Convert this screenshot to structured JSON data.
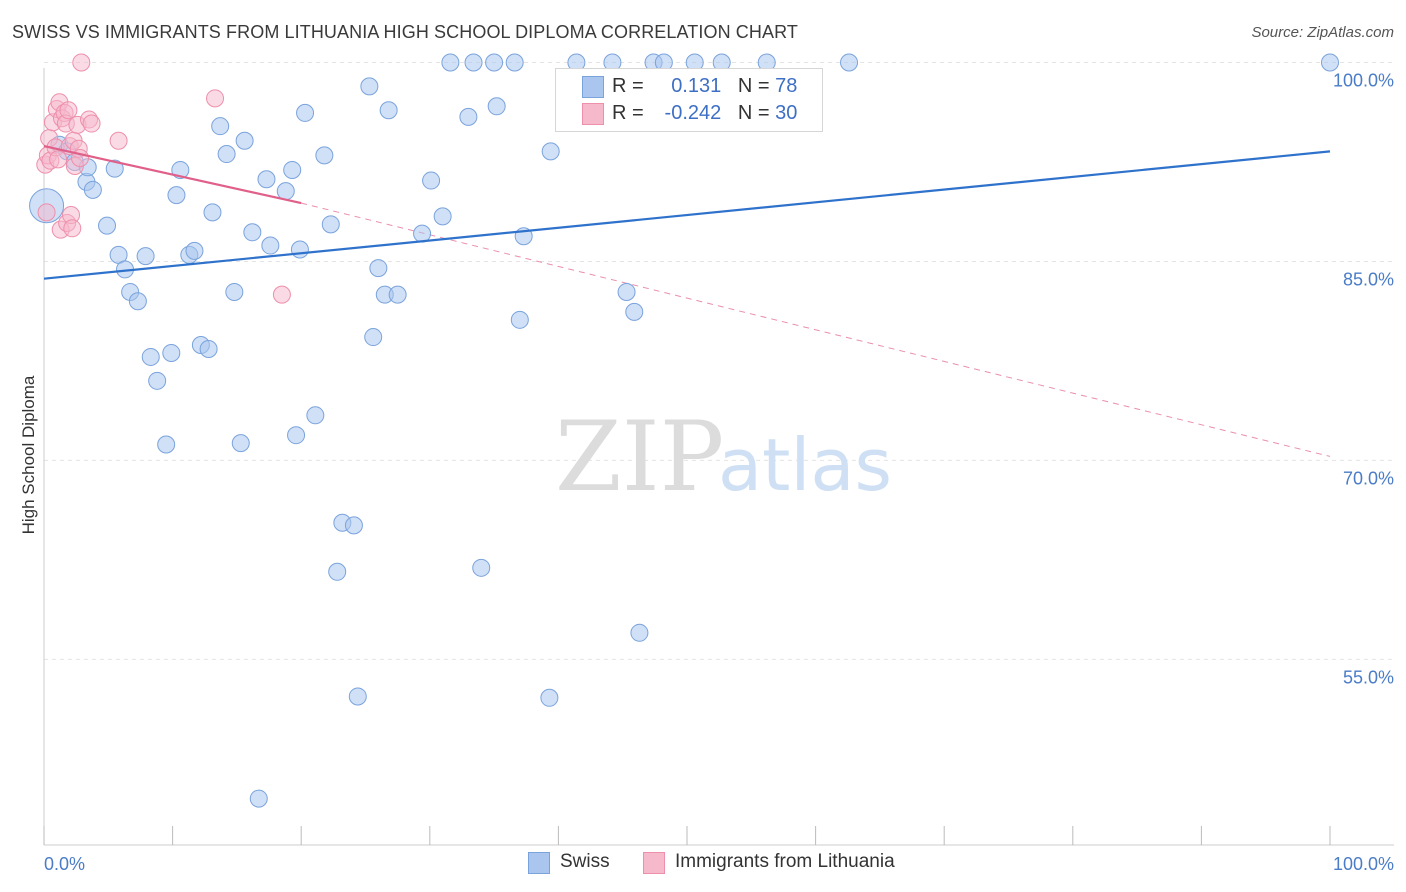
{
  "title": "SWISS VS IMMIGRANTS FROM LITHUANIA HIGH SCHOOL DIPLOMA CORRELATION CHART",
  "source": "Source: ZipAtlas.com",
  "watermark": {
    "zip": "ZIP",
    "atlas": "atlas"
  },
  "legend": {
    "swiss": {
      "r_label": "R =",
      "r_value": "0.131",
      "n_label": "N =",
      "n_value": "78"
    },
    "lithuania": {
      "r_label": "R =",
      "r_value": "-0.242",
      "n_label": "N =",
      "n_value": "30"
    }
  },
  "bottom_legend": {
    "swiss": "Swiss",
    "lithuania": "Immigrants from Lithuania"
  },
  "colors": {
    "swiss_fill": "#aac6ee",
    "swiss_stroke": "#7aa3dc",
    "swiss_line": "#2f72cc",
    "lith_fill": "#f6b8cb",
    "lith_stroke": "#ee8fab",
    "lith_line": "#e0608a"
  },
  "chart_data": {
    "type": "scatter",
    "title": "SWISS VS IMMIGRANTS FROM LITHUANIA HIGH SCHOOL DIPLOMA CORRELATION CHART",
    "ylabel": "High School Diploma",
    "xlim": [
      0,
      100
    ],
    "ylim": [
      41,
      102
    ],
    "y_ticks": [
      {
        "value": 100,
        "label": "100.0%"
      },
      {
        "value": 85,
        "label": "85.0%"
      },
      {
        "value": 70,
        "label": "70.0%"
      },
      {
        "value": 55,
        "label": "55.0%"
      }
    ],
    "x_tick_labels": [
      {
        "value": 0,
        "label": "0.0%"
      },
      {
        "value": 100,
        "label": "100.0%"
      }
    ],
    "grid": true,
    "series": [
      {
        "name": "Swiss",
        "trend": {
          "x0": 0,
          "y0": 83.7,
          "x1": 100,
          "y1": 93.3
        },
        "points": [
          [
            0.2,
            89.2
          ],
          [
            1.2,
            93.8
          ],
          [
            1.8,
            93.3
          ],
          [
            2.4,
            92.5
          ],
          [
            3.3,
            91.0
          ],
          [
            3.4,
            92.1
          ],
          [
            3.8,
            90.4
          ],
          [
            4.9,
            87.7
          ],
          [
            5.5,
            92.0
          ],
          [
            5.8,
            85.5
          ],
          [
            6.3,
            84.4
          ],
          [
            6.7,
            82.7
          ],
          [
            7.3,
            82.0
          ],
          [
            7.9,
            85.4
          ],
          [
            8.3,
            77.8
          ],
          [
            8.8,
            76.0
          ],
          [
            9.5,
            71.2
          ],
          [
            9.9,
            78.1
          ],
          [
            10.3,
            90.0
          ],
          [
            10.6,
            91.9
          ],
          [
            11.3,
            85.5
          ],
          [
            11.7,
            85.8
          ],
          [
            12.2,
            78.7
          ],
          [
            12.8,
            78.4
          ],
          [
            13.1,
            88.7
          ],
          [
            13.7,
            95.2
          ],
          [
            14.2,
            93.1
          ],
          [
            14.8,
            82.7
          ],
          [
            15.3,
            71.3
          ],
          [
            15.6,
            94.1
          ],
          [
            16.2,
            87.2
          ],
          [
            16.7,
            44.5
          ],
          [
            17.3,
            91.2
          ],
          [
            17.6,
            86.2
          ],
          [
            18.8,
            90.3
          ],
          [
            19.3,
            91.9
          ],
          [
            19.6,
            71.9
          ],
          [
            19.9,
            85.9
          ],
          [
            20.3,
            96.2
          ],
          [
            21.1,
            73.4
          ],
          [
            21.8,
            93.0
          ],
          [
            22.3,
            87.8
          ],
          [
            22.8,
            61.6
          ],
          [
            23.2,
            65.3
          ],
          [
            24.1,
            65.1
          ],
          [
            24.4,
            52.2
          ],
          [
            25.3,
            98.2
          ],
          [
            25.6,
            79.3
          ],
          [
            26.0,
            84.5
          ],
          [
            26.5,
            82.5
          ],
          [
            26.8,
            96.4
          ],
          [
            27.5,
            82.5
          ],
          [
            29.4,
            87.1
          ],
          [
            30.1,
            91.1
          ],
          [
            31.0,
            88.4
          ],
          [
            31.6,
            100.0
          ],
          [
            33.0,
            95.9
          ],
          [
            33.4,
            100.0
          ],
          [
            34.0,
            61.9
          ],
          [
            35.0,
            100.0
          ],
          [
            35.2,
            96.7
          ],
          [
            36.6,
            100.0
          ],
          [
            37.0,
            80.6
          ],
          [
            37.3,
            86.9
          ],
          [
            39.3,
            52.1
          ],
          [
            39.4,
            93.3
          ],
          [
            41.4,
            100.0
          ],
          [
            44.2,
            100.0
          ],
          [
            45.3,
            82.7
          ],
          [
            45.9,
            81.2
          ],
          [
            46.3,
            57.0
          ],
          [
            47.4,
            100.0
          ],
          [
            48.2,
            100.0
          ],
          [
            50.6,
            100.0
          ],
          [
            52.7,
            100.0
          ],
          [
            56.2,
            100.0
          ],
          [
            62.6,
            100.0
          ],
          [
            100.0,
            100.0
          ]
        ]
      },
      {
        "name": "Immigrants from Lithuania",
        "trend": {
          "x0": 0,
          "y0": 93.7,
          "x1": 20,
          "y1": 89.4
        },
        "trend_extension": {
          "x0": 20,
          "y0": 89.4,
          "x1": 100,
          "y1": 70.3
        },
        "points": [
          [
            0.1,
            92.3
          ],
          [
            0.2,
            88.7
          ],
          [
            0.3,
            93.0
          ],
          [
            0.4,
            94.3
          ],
          [
            0.5,
            92.6
          ],
          [
            0.7,
            95.5
          ],
          [
            0.9,
            93.6
          ],
          [
            1.0,
            96.5
          ],
          [
            1.1,
            92.7
          ],
          [
            1.2,
            97.0
          ],
          [
            1.3,
            87.4
          ],
          [
            1.4,
            95.8
          ],
          [
            1.6,
            96.2
          ],
          [
            1.7,
            95.4
          ],
          [
            1.8,
            87.9
          ],
          [
            1.9,
            96.4
          ],
          [
            2.0,
            93.7
          ],
          [
            2.1,
            88.5
          ],
          [
            2.2,
            87.5
          ],
          [
            2.3,
            94.1
          ],
          [
            2.4,
            92.2
          ],
          [
            2.6,
            95.3
          ],
          [
            2.7,
            93.5
          ],
          [
            2.8,
            92.8
          ],
          [
            2.9,
            100.0
          ],
          [
            3.5,
            95.7
          ],
          [
            3.7,
            95.4
          ],
          [
            5.8,
            94.1
          ],
          [
            13.3,
            97.3
          ],
          [
            18.5,
            82.5
          ]
        ]
      }
    ]
  }
}
